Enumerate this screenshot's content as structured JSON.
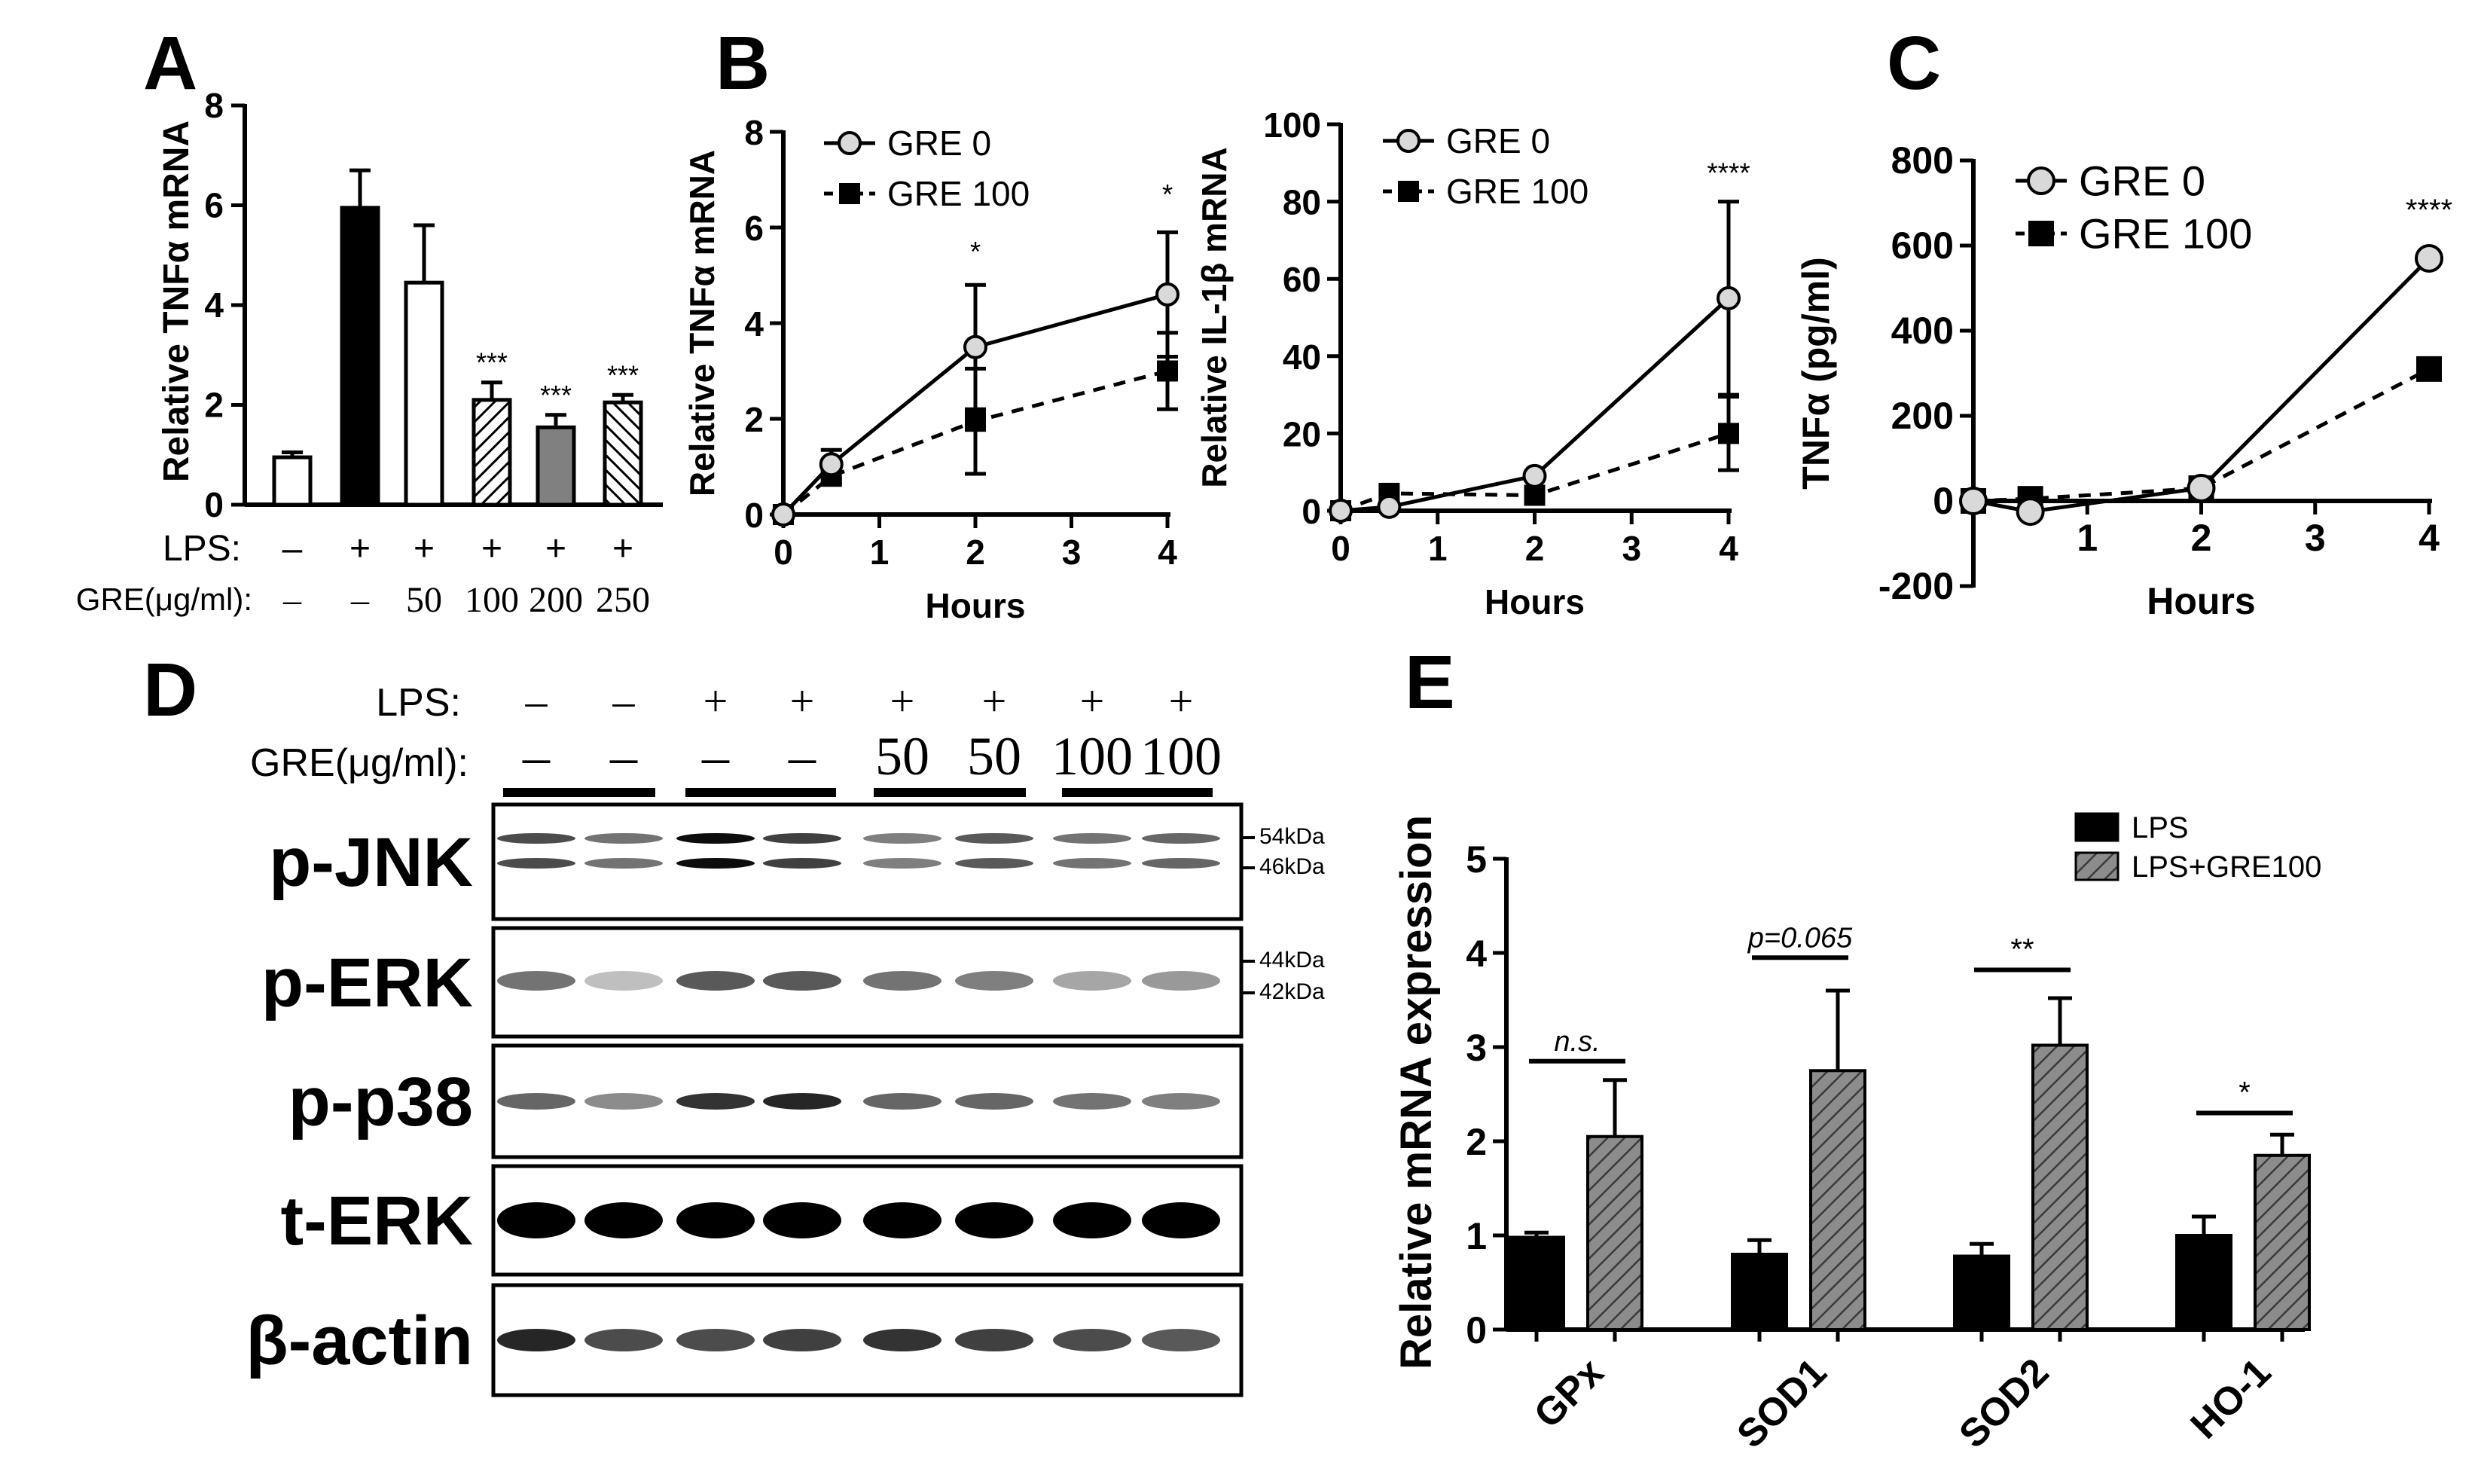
{
  "panel_letters": {
    "a": "A",
    "b": "B",
    "c": "C",
    "d": "D",
    "e": "E"
  },
  "colors": {
    "ink": "#000000",
    "grey_bar": "#808080",
    "hatch": "#7a7a7a",
    "gre0_fill": "#d9d9d9"
  },
  "chart_data": [
    {
      "id": "A",
      "type": "bar",
      "ylabel": "Relative TNFα mRNA",
      "ylim": [
        0,
        8
      ],
      "yticks": [
        0,
        2,
        4,
        6,
        8
      ],
      "bars": [
        {
          "value": 0.95,
          "error": 0.1,
          "style": "white",
          "sig": ""
        },
        {
          "value": 5.95,
          "error": 0.75,
          "style": "black",
          "sig": ""
        },
        {
          "value": 4.45,
          "error": 1.15,
          "style": "white",
          "sig": ""
        },
        {
          "value": 2.1,
          "error": 0.35,
          "style": "hatch",
          "sig": "***"
        },
        {
          "value": 1.55,
          "error": 0.25,
          "style": "grey",
          "sig": "***"
        },
        {
          "value": 2.05,
          "error": 0.15,
          "style": "hatch-rev",
          "sig": "***"
        }
      ],
      "rows": [
        {
          "label": "LPS:",
          "values": [
            "–",
            "+",
            "+",
            "+",
            "+",
            "+"
          ]
        },
        {
          "label": "GRE(μg/ml):",
          "values": [
            "–",
            "–",
            "50",
            "100",
            "200",
            "250"
          ]
        }
      ]
    },
    {
      "id": "B-left",
      "type": "line",
      "xlabel": "Hours",
      "ylabel": "Relative TNFα mRNA",
      "xlim": [
        0,
        4
      ],
      "ylim": [
        0,
        8
      ],
      "xticks": [
        0,
        1,
        2,
        3,
        4
      ],
      "yticks": [
        0,
        2,
        4,
        6,
        8
      ],
      "legend_position": "top-left",
      "series": [
        {
          "name": "GRE 0",
          "marker": "circle",
          "line": "solid",
          "x": [
            0,
            0.5,
            2,
            4
          ],
          "y": [
            0,
            1.05,
            3.5,
            4.6
          ],
          "err": [
            0,
            0.3,
            1.3,
            1.3
          ]
        },
        {
          "name": "GRE 100",
          "marker": "square",
          "line": "dashed",
          "x": [
            0,
            0.5,
            2,
            4
          ],
          "y": [
            0,
            0.8,
            1.95,
            3.0
          ],
          "err": [
            0,
            0.15,
            1.1,
            0.8
          ]
        }
      ],
      "annotations": [
        {
          "x": 2,
          "y": 5.3,
          "text": "*"
        },
        {
          "x": 4,
          "y": 6.5,
          "text": "*"
        }
      ]
    },
    {
      "id": "B-right",
      "type": "line",
      "xlabel": "Hours",
      "ylabel": "Relative IL-1β mRNA",
      "xlim": [
        0,
        4
      ],
      "ylim": [
        0,
        100
      ],
      "xticks": [
        0,
        1,
        2,
        3,
        4
      ],
      "yticks": [
        0,
        20,
        40,
        60,
        80,
        100
      ],
      "legend_position": "top-left",
      "series": [
        {
          "name": "GRE 0",
          "marker": "circle",
          "line": "solid",
          "x": [
            0,
            0.5,
            2,
            4
          ],
          "y": [
            0,
            1,
            9,
            55
          ],
          "err": [
            0,
            0,
            0,
            25
          ]
        },
        {
          "name": "GRE 100",
          "marker": "square",
          "line": "dashed",
          "x": [
            0,
            0.5,
            2,
            4
          ],
          "y": [
            0,
            4.5,
            4,
            20
          ],
          "err": [
            0,
            0,
            0,
            9.5
          ]
        }
      ],
      "annotations": [
        {
          "x": 4,
          "y": 85,
          "text": "****"
        }
      ]
    },
    {
      "id": "C",
      "type": "line",
      "xlabel": "Hours",
      "ylabel": "TNFα (pg/ml)",
      "xlim": [
        0,
        4
      ],
      "ylim": [
        -200,
        800
      ],
      "xticks": [
        1,
        2,
        3,
        4
      ],
      "yticks": [
        -200,
        0,
        200,
        400,
        600,
        800
      ],
      "legend_position": "top-left",
      "series": [
        {
          "name": "GRE 0",
          "marker": "circle",
          "line": "solid",
          "x": [
            0,
            0.5,
            2,
            4
          ],
          "y": [
            0,
            -25,
            30,
            570
          ]
        },
        {
          "name": "GRE 100",
          "marker": "square",
          "line": "dashed",
          "x": [
            0,
            0.5,
            2,
            4
          ],
          "y": [
            0,
            5,
            30,
            310
          ]
        }
      ],
      "annotations": [
        {
          "x": 4,
          "y": 660,
          "text": "****"
        }
      ]
    },
    {
      "id": "E",
      "type": "bar",
      "ylabel": "Relative mRNA expression",
      "ylim": [
        0,
        5
      ],
      "yticks": [
        0,
        1,
        2,
        3,
        4,
        5
      ],
      "categories": [
        "GPx",
        "SOD1",
        "SOD2",
        "HO-1"
      ],
      "legend_position": "top-right",
      "series": [
        {
          "name": "LPS",
          "values": [
            0.98,
            0.8,
            0.78,
            1.0
          ],
          "err": [
            0.05,
            0.15,
            0.13,
            0.2
          ]
        },
        {
          "name": "LPS+GRE100",
          "values": [
            2.05,
            2.75,
            3.02,
            1.85
          ],
          "err": [
            0.6,
            0.85,
            0.5,
            0.22
          ]
        }
      ],
      "annotations": [
        {
          "category": "GPx",
          "text": "n.s.",
          "y": 2.85
        },
        {
          "category": "SOD1",
          "text": "p=0.065",
          "y": 3.95
        },
        {
          "category": "SOD2",
          "text": "**",
          "y": 3.82
        },
        {
          "category": "HO-1",
          "text": "*",
          "y": 2.3
        }
      ]
    }
  ],
  "blot": {
    "lps_label": "LPS:",
    "gre_label": "GRE(μg/ml):",
    "lps": [
      "–",
      "–",
      "+",
      "+",
      "+",
      "+",
      "+",
      "+"
    ],
    "gre": [
      "–",
      "–",
      "–",
      "–",
      "50",
      "50",
      "100",
      "100"
    ],
    "rows": [
      {
        "label": "p-JNK",
        "markers": [
          "54kDa",
          "46kDa"
        ]
      },
      {
        "label": "p-ERK",
        "markers": [
          "44kDa",
          "42kDa"
        ]
      },
      {
        "label": "p-p38",
        "markers": []
      },
      {
        "label": "t-ERK",
        "markers": []
      },
      {
        "label": "β-actin",
        "markers": []
      }
    ]
  }
}
